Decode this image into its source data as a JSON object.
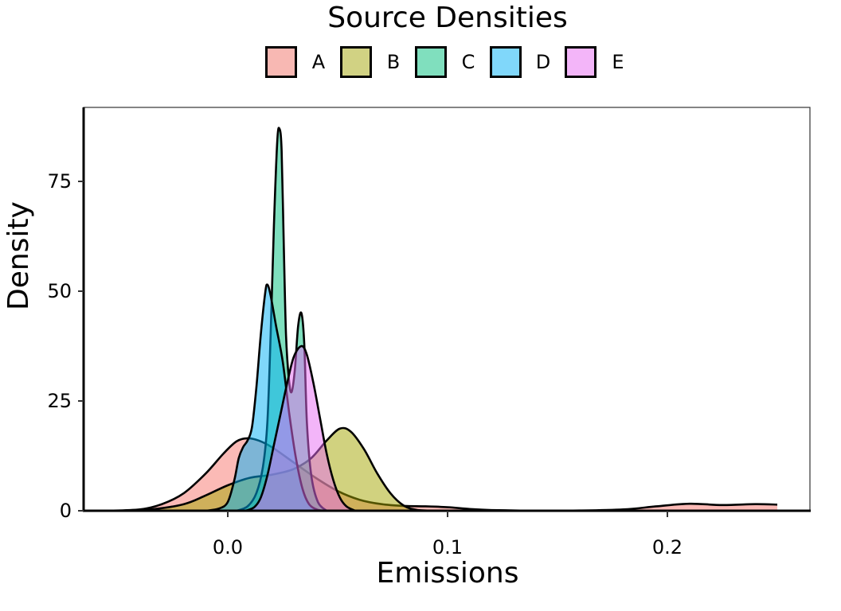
{
  "chart_data": {
    "type": "area",
    "subtype": "density",
    "title": "Source Densities",
    "xlabel": "Emissions",
    "ylabel": "Density",
    "xlim": [
      -0.065,
      0.265
    ],
    "ylim": [
      0,
      92
    ],
    "xticks": [
      0.0,
      0.1,
      0.2
    ],
    "xtick_labels": [
      "0.0",
      "0.1",
      "0.2"
    ],
    "yticks": [
      0,
      25,
      50,
      75
    ],
    "ytick_labels": [
      "0",
      "25",
      "50",
      "75"
    ],
    "grid": false,
    "legend_position": "top",
    "legend_title": "",
    "series": [
      {
        "name": "A",
        "color": "#F8766D",
        "points": [
          [
            -0.055,
            0
          ],
          [
            -0.04,
            0.3
          ],
          [
            -0.03,
            1.5
          ],
          [
            -0.02,
            4
          ],
          [
            -0.01,
            8.5
          ],
          [
            -0.002,
            13
          ],
          [
            0.004,
            15.8
          ],
          [
            0.009,
            16.5
          ],
          [
            0.014,
            16
          ],
          [
            0.02,
            14.5
          ],
          [
            0.03,
            11
          ],
          [
            0.04,
            7.5
          ],
          [
            0.05,
            4.5
          ],
          [
            0.06,
            2.5
          ],
          [
            0.07,
            1.5
          ],
          [
            0.08,
            1.1
          ],
          [
            0.09,
            1.0
          ],
          [
            0.1,
            0.8
          ],
          [
            0.11,
            0.4
          ],
          [
            0.12,
            0.15
          ],
          [
            0.14,
            0.02
          ],
          [
            0.16,
            0.05
          ],
          [
            0.18,
            0.3
          ],
          [
            0.195,
            1.0
          ],
          [
            0.21,
            1.6
          ],
          [
            0.225,
            1.3
          ],
          [
            0.24,
            1.5
          ],
          [
            0.25,
            1.4
          ]
        ]
      },
      {
        "name": "B",
        "color": "#A3A500",
        "points": [
          [
            -0.05,
            0
          ],
          [
            -0.035,
            0.3
          ],
          [
            -0.02,
            1.5
          ],
          [
            -0.01,
            3.5
          ],
          [
            0.0,
            5.8
          ],
          [
            0.01,
            7.5
          ],
          [
            0.02,
            8.2
          ],
          [
            0.03,
            9.5
          ],
          [
            0.038,
            12
          ],
          [
            0.045,
            16
          ],
          [
            0.051,
            18.7
          ],
          [
            0.056,
            18
          ],
          [
            0.062,
            14
          ],
          [
            0.068,
            8.5
          ],
          [
            0.074,
            4
          ],
          [
            0.08,
            1.2
          ],
          [
            0.086,
            0.2
          ],
          [
            0.095,
            0
          ]
        ]
      },
      {
        "name": "C",
        "color": "#00BF7D",
        "points": [
          [
            0.004,
            0
          ],
          [
            0.009,
            1
          ],
          [
            0.013,
            4
          ],
          [
            0.016,
            10
          ],
          [
            0.018,
            20
          ],
          [
            0.0195,
            40
          ],
          [
            0.021,
            65
          ],
          [
            0.0225,
            84
          ],
          [
            0.0235,
            87
          ],
          [
            0.0245,
            82
          ],
          [
            0.0255,
            60
          ],
          [
            0.0265,
            40
          ],
          [
            0.0278,
            30
          ],
          [
            0.029,
            27
          ],
          [
            0.0305,
            32
          ],
          [
            0.032,
            42
          ],
          [
            0.0335,
            45
          ],
          [
            0.0348,
            38
          ],
          [
            0.036,
            20
          ],
          [
            0.038,
            8
          ],
          [
            0.041,
            2
          ],
          [
            0.045,
            0
          ]
        ]
      },
      {
        "name": "D",
        "color": "#00B0F6",
        "points": [
          [
            -0.01,
            0
          ],
          [
            -0.004,
            0.5
          ],
          [
            0.0,
            2
          ],
          [
            0.003,
            7
          ],
          [
            0.005,
            12
          ],
          [
            0.007,
            14.5
          ],
          [
            0.009,
            16
          ],
          [
            0.011,
            19
          ],
          [
            0.013,
            28
          ],
          [
            0.015,
            40
          ],
          [
            0.017,
            49.5
          ],
          [
            0.018,
            51.5
          ],
          [
            0.0195,
            49
          ],
          [
            0.022,
            42
          ],
          [
            0.025,
            34
          ],
          [
            0.028,
            22
          ],
          [
            0.031,
            12
          ],
          [
            0.034,
            5
          ],
          [
            0.037,
            1.5
          ],
          [
            0.041,
            0.2
          ],
          [
            0.045,
            0
          ]
        ]
      },
      {
        "name": "E",
        "color": "#E76BF3",
        "points": [
          [
            0.008,
            0
          ],
          [
            0.012,
            0.8
          ],
          [
            0.015,
            3
          ],
          [
            0.018,
            8
          ],
          [
            0.021,
            15
          ],
          [
            0.024,
            22
          ],
          [
            0.027,
            29
          ],
          [
            0.03,
            35
          ],
          [
            0.0335,
            37.5
          ],
          [
            0.036,
            35.5
          ],
          [
            0.039,
            29
          ],
          [
            0.042,
            21
          ],
          [
            0.045,
            13
          ],
          [
            0.048,
            7
          ],
          [
            0.051,
            3
          ],
          [
            0.054,
            1
          ],
          [
            0.058,
            0
          ]
        ]
      }
    ]
  },
  "legend": {
    "items": [
      {
        "label": "A",
        "color": "#F8B8B3"
      },
      {
        "label": "B",
        "color": "#D1D283"
      },
      {
        "label": "C",
        "color": "#80DFBE"
      },
      {
        "label": "D",
        "color": "#80D7FA"
      },
      {
        "label": "E",
        "color": "#F3B5F9"
      }
    ]
  }
}
